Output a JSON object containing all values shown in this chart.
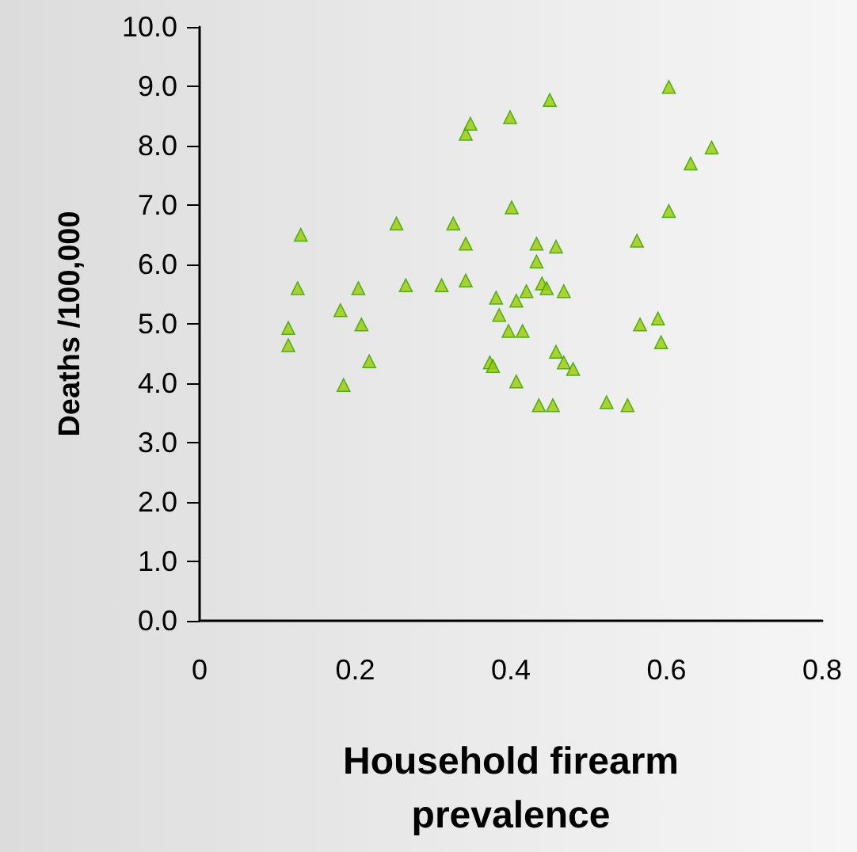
{
  "chart_data": {
    "type": "scatter",
    "xlabel": "Household firearm\nprevalence",
    "ylabel": "Deaths /100,000",
    "marker": "triangle",
    "grid": false,
    "x": [
      0.13,
      0.126,
      0.114,
      0.114,
      0.181,
      0.204,
      0.208,
      0.218,
      0.185,
      0.253,
      0.265,
      0.311,
      0.326,
      0.342,
      0.342,
      0.342,
      0.348,
      0.399,
      0.45,
      0.401,
      0.603,
      0.658,
      0.631,
      0.603,
      0.562,
      0.433,
      0.458,
      0.433,
      0.44,
      0.446,
      0.42,
      0.468,
      0.381,
      0.407,
      0.385,
      0.397,
      0.415,
      0.566,
      0.589,
      0.593,
      0.458,
      0.468,
      0.48,
      0.373,
      0.377,
      0.407,
      0.436,
      0.454,
      0.523,
      0.55
    ],
    "series": [
      {
        "color": "#99cc00",
        "values": [
          6.5,
          5.6,
          4.93,
          4.64,
          5.23,
          5.6,
          4.99,
          4.37,
          3.97,
          6.69,
          5.65,
          5.65,
          6.69,
          6.35,
          5.73,
          8.2,
          8.37,
          8.48,
          8.77,
          6.96,
          8.99,
          7.97,
          7.7,
          6.9,
          6.4,
          6.35,
          6.3,
          6.05,
          5.68,
          5.6,
          5.55,
          5.55,
          5.44,
          5.39,
          5.15,
          4.88,
          4.88,
          4.99,
          5.09,
          4.69,
          4.53,
          4.35,
          4.24,
          4.35,
          4.29,
          4.03,
          3.63,
          3.63,
          3.68,
          3.63
        ]
      }
    ],
    "xlim": [
      0,
      0.8
    ],
    "xticks": [
      0,
      0.2,
      0.4,
      0.6,
      0.8
    ],
    "ylim": [
      0,
      10
    ],
    "yticks": [
      {
        "value": 0,
        "label": "0.0"
      },
      {
        "value": 1,
        "label": "1.0"
      },
      {
        "value": 2,
        "label": "2.0"
      },
      {
        "value": 3,
        "label": "3.0"
      },
      {
        "value": 4,
        "label": "4.0"
      },
      {
        "value": 5,
        "label": "5.0"
      },
      {
        "value": 6,
        "label": "6.0"
      },
      {
        "value": 7,
        "label": "7.0"
      },
      {
        "value": 8,
        "label": "8.0"
      },
      {
        "value": 9,
        "label": "9.0"
      },
      {
        "value": 10,
        "label": "10.0"
      }
    ]
  }
}
